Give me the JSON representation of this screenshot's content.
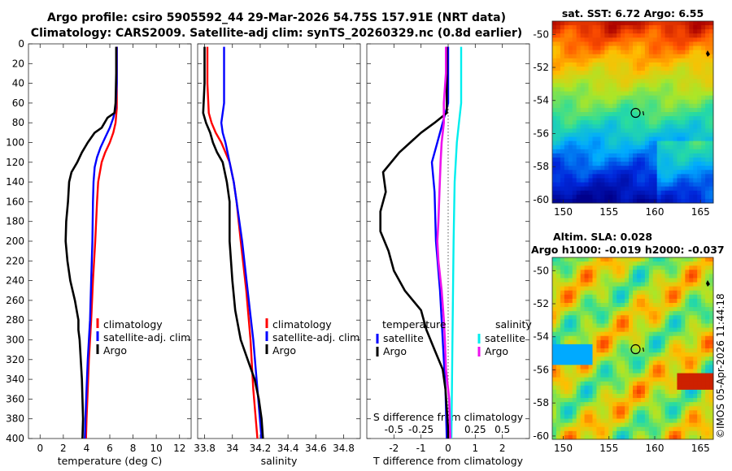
{
  "figure": {
    "title_line1": "Argo profile: csiro 5905592_44 29-Mar-2026 54.75S 157.91E (NRT data)",
    "title_line2": "Climatology: CARS2009. Satellite-adj clim: synTS_20260329.nc (0.8d earlier)",
    "watermark": "©IMOS 05-Apr-2026 11:44:18"
  },
  "colors": {
    "climatology": "#ff0000",
    "satellite": "#0000ff",
    "argo": "#000000",
    "salinity_satellite": "#00eeee",
    "salinity_argo": "#ee11ee"
  },
  "chart_data": [
    {
      "type": "line",
      "panel": "temperature",
      "xlabel": "temperature (deg C)",
      "ylabel": "",
      "xlim": [
        -1,
        13
      ],
      "ylim": [
        400,
        0
      ],
      "xticks": [
        "0",
        "2",
        "4",
        "6",
        "8",
        "10",
        "12"
      ],
      "yticks": [
        "0",
        "20",
        "40",
        "60",
        "80",
        "100",
        "120",
        "140",
        "160",
        "180",
        "200",
        "220",
        "240",
        "260",
        "280",
        "300",
        "320",
        "340",
        "360",
        "380",
        "400"
      ],
      "series": [
        {
          "name": "climatology",
          "depth": [
            3,
            40,
            65,
            80,
            90,
            100,
            110,
            120,
            140,
            160,
            200,
            240,
            280,
            300,
            320,
            350,
            380,
            400
          ],
          "values": [
            6.6,
            6.6,
            6.6,
            6.5,
            6.3,
            6.0,
            5.6,
            5.3,
            5.0,
            4.9,
            4.75,
            4.55,
            4.4,
            4.3,
            4.2,
            4.1,
            4.0,
            3.95
          ]
        },
        {
          "name": "satellite-adj. clim",
          "depth": [
            3,
            40,
            65,
            75,
            85,
            95,
            105,
            115,
            125,
            140,
            160,
            200,
            240,
            280,
            300,
            320,
            350,
            380,
            400
          ],
          "values": [
            6.6,
            6.6,
            6.5,
            6.3,
            6.0,
            5.6,
            5.2,
            4.9,
            4.7,
            4.6,
            4.55,
            4.5,
            4.4,
            4.3,
            4.2,
            4.1,
            4.0,
            3.9,
            3.85
          ]
        },
        {
          "name": "Argo",
          "depth": [
            3,
            30,
            60,
            70,
            75,
            85,
            90,
            100,
            110,
            120,
            130,
            140,
            160,
            180,
            200,
            220,
            240,
            260,
            280,
            290,
            300,
            320,
            340,
            360,
            380,
            400
          ],
          "values": [
            6.55,
            6.55,
            6.5,
            6.4,
            5.8,
            5.3,
            4.7,
            4.1,
            3.6,
            3.2,
            2.7,
            2.5,
            2.4,
            2.25,
            2.2,
            2.35,
            2.6,
            3.0,
            3.3,
            3.3,
            3.4,
            3.5,
            3.6,
            3.65,
            3.7,
            3.65
          ]
        }
      ],
      "legend_position": "lower-right"
    },
    {
      "type": "line",
      "panel": "salinity",
      "xlabel": "salinity",
      "ylabel": "",
      "xlim": [
        33.75,
        34.92
      ],
      "ylim": [
        400,
        0
      ],
      "xticks": [
        "33.8",
        "34",
        "34.2",
        "34.4",
        "34.6",
        "34.8"
      ],
      "series": [
        {
          "name": "climatology",
          "depth": [
            3,
            40,
            70,
            80,
            90,
            100,
            120,
            140,
            160,
            200,
            250,
            300,
            350,
            400
          ],
          "values": [
            33.82,
            33.82,
            33.83,
            33.85,
            33.88,
            33.92,
            33.98,
            34.01,
            34.03,
            34.06,
            34.1,
            34.13,
            34.15,
            34.18
          ]
        },
        {
          "name": "satellite-adj. clim",
          "depth": [
            3,
            40,
            60,
            70,
            80,
            90,
            100,
            120,
            140,
            160,
            200,
            250,
            300,
            350,
            400
          ],
          "values": [
            33.94,
            33.94,
            33.94,
            33.93,
            33.92,
            33.93,
            33.95,
            33.98,
            34.01,
            34.03,
            34.07,
            34.11,
            34.15,
            34.18,
            34.21
          ]
        },
        {
          "name": "Argo",
          "depth": [
            3,
            40,
            70,
            80,
            90,
            100,
            110,
            120,
            140,
            160,
            200,
            240,
            270,
            300,
            320,
            340,
            360,
            380,
            400
          ],
          "values": [
            33.8,
            33.8,
            33.79,
            33.81,
            33.84,
            33.86,
            33.89,
            33.93,
            33.96,
            33.98,
            33.98,
            34.0,
            34.02,
            34.06,
            34.11,
            34.16,
            34.19,
            34.21,
            34.22
          ]
        }
      ],
      "legend_position": "lower-right"
    },
    {
      "type": "line",
      "panel": "difference",
      "xlabel": "T difference from climatology",
      "xlabel_top": "S difference from climatology",
      "xlim": [
        -3,
        3
      ],
      "ylim": [
        400,
        0
      ],
      "xticks": [
        "-2",
        "-1",
        "0",
        "1",
        "2"
      ],
      "xticks_top": [
        "-0.5",
        "-0.25",
        "0",
        "0.25",
        "0.5"
      ],
      "zero_line": "dotted",
      "series": [
        {
          "name": "temperature satellite",
          "depth": [
            3,
            60,
            80,
            100,
            120,
            150,
            200,
            250,
            300,
            350,
            400
          ],
          "values": [
            0.0,
            0.0,
            -0.2,
            -0.4,
            -0.6,
            -0.5,
            -0.45,
            -0.3,
            -0.2,
            -0.1,
            -0.05
          ]
        },
        {
          "name": "temperature Argo",
          "depth": [
            3,
            70,
            80,
            90,
            110,
            130,
            150,
            170,
            190,
            210,
            230,
            250,
            270,
            290,
            310,
            330,
            350,
            370,
            390,
            400
          ],
          "values": [
            -0.05,
            -0.05,
            -0.5,
            -1.0,
            -1.8,
            -2.4,
            -2.3,
            -2.5,
            -2.5,
            -2.2,
            -2.0,
            -1.6,
            -1.0,
            -0.8,
            -0.5,
            -0.2,
            -0.1,
            -0.05,
            0.0,
            0.0
          ]
        },
        {
          "name": "salinity satellite",
          "depth": [
            3,
            60,
            80,
            90,
            100,
            140,
            200,
            300,
            400
          ],
          "values": [
            0.12,
            0.12,
            0.1,
            0.09,
            0.08,
            0.06,
            0.05,
            0.04,
            0.03
          ]
        },
        {
          "name": "salinity Argo",
          "depth": [
            3,
            30,
            60,
            80,
            100,
            120,
            150,
            180,
            200,
            220,
            250,
            280,
            300,
            330,
            360,
            400
          ],
          "values": [
            -0.02,
            -0.02,
            -0.04,
            -0.04,
            -0.06,
            -0.07,
            -0.08,
            -0.09,
            -0.1,
            -0.09,
            -0.06,
            -0.04,
            -0.03,
            -0.02,
            0.01,
            0.02
          ]
        }
      ],
      "legend": {
        "temperature_header": "temperature",
        "salinity_header": "salinity",
        "satellite": "satellite",
        "argo": "Argo"
      }
    }
  ],
  "maps": [
    {
      "title": "sat. SST: 6.72 Argo: 6.55",
      "subtitle": "",
      "xticks": [
        "150",
        "155",
        "160",
        "165"
      ],
      "yticks": [
        "-50",
        "-52",
        "-54",
        "-56",
        "-58",
        "-60"
      ],
      "lon_range": [
        148.8,
        166.4
      ],
      "lat_range": [
        -60.2,
        -49.2
      ],
      "argo_position": {
        "lon": 157.91,
        "lat": -54.75
      },
      "colormap": "sst"
    },
    {
      "title": "Altim. SLA: 0.028",
      "subtitle": "Argo h1000: -0.019 h2000: -0.037",
      "xticks": [
        "150",
        "155",
        "160",
        "165"
      ],
      "yticks": [
        "-50",
        "-52",
        "-54",
        "-56",
        "-58",
        "-60"
      ],
      "lon_range": [
        148.8,
        166.4
      ],
      "lat_range": [
        -60.2,
        -49.2
      ],
      "argo_position": {
        "lon": 157.91,
        "lat": -54.75
      },
      "colormap": "sla"
    }
  ]
}
